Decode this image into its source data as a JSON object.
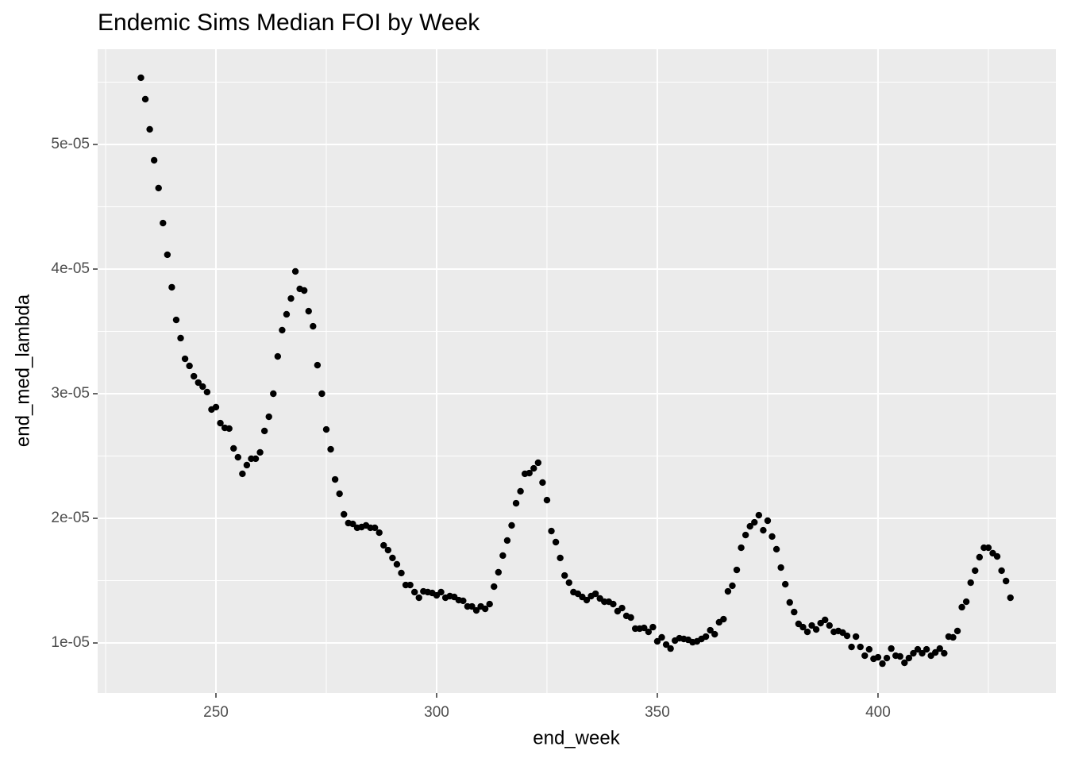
{
  "chart_data": {
    "type": "scatter",
    "title": "Endemic Sims Median FOI by Week",
    "x_label": "end_week",
    "y_label": "end_med_lambda",
    "color": "#000000",
    "grid": true,
    "xlim": [
      223.2,
      440.3
    ],
    "ylim": [
      5.99e-06,
      5.764e-05
    ],
    "xticks": [
      250,
      300,
      350,
      400
    ],
    "minor_xticks": [
      225,
      275,
      325,
      375,
      425
    ],
    "yticks": [
      {
        "value": 1e-05,
        "label": "1e-05"
      },
      {
        "value": 2e-05,
        "label": "2e-05"
      },
      {
        "value": 3e-05,
        "label": "3e-05"
      },
      {
        "value": 4e-05,
        "label": "4e-05"
      },
      {
        "value": 5e-05,
        "label": "5e-05"
      }
    ],
    "minor_yticks": [
      1.5e-05,
      2.5e-05,
      3.5e-05,
      4.5e-05,
      5.5e-05
    ],
    "x": [
      233,
      234,
      235,
      236,
      237,
      238,
      239,
      240,
      241,
      242,
      243,
      244,
      245,
      246,
      247,
      248,
      249,
      250,
      251,
      252,
      253,
      254,
      255,
      256,
      257,
      258,
      259,
      260,
      261,
      262,
      263,
      264,
      265,
      266,
      267,
      268,
      269,
      270,
      271,
      272,
      273,
      274,
      275,
      276,
      277,
      278,
      279,
      280,
      281,
      282,
      283,
      284,
      285,
      286,
      287,
      288,
      289,
      290,
      291,
      292,
      293,
      294,
      295,
      296,
      297,
      298,
      299,
      300,
      301,
      302,
      303,
      304,
      305,
      306,
      307,
      308,
      309,
      310,
      311,
      312,
      313,
      314,
      315,
      316,
      317,
      318,
      319,
      320,
      321,
      322,
      323,
      324,
      325,
      326,
      327,
      328,
      329,
      330,
      331,
      332,
      333,
      334,
      335,
      336,
      337,
      338,
      339,
      340,
      341,
      342,
      343,
      344,
      345,
      346,
      347,
      348,
      349,
      350,
      351,
      352,
      353,
      354,
      355,
      356,
      357,
      358,
      359,
      360,
      361,
      362,
      363,
      364,
      365,
      366,
      367,
      368,
      369,
      370,
      371,
      372,
      373,
      374,
      375,
      376,
      377,
      378,
      379,
      380,
      381,
      382,
      383,
      384,
      385,
      386,
      387,
      388,
      389,
      390,
      391,
      392,
      393,
      394,
      395,
      396,
      397,
      398,
      399,
      400,
      401,
      402,
      403,
      404,
      405,
      406,
      407,
      408,
      409,
      410,
      411,
      412,
      413,
      414,
      415,
      416,
      417,
      418,
      419,
      420,
      421,
      422,
      423,
      424,
      425,
      426,
      427,
      428,
      429,
      430
    ],
    "values": [
      5.535e-05,
      5.363e-05,
      5.121e-05,
      4.873e-05,
      4.65e-05,
      4.369e-05,
      4.115e-05,
      3.854e-05,
      3.592e-05,
      3.446e-05,
      3.28e-05,
      3.223e-05,
      3.14e-05,
      3.089e-05,
      3.057e-05,
      3.013e-05,
      2.873e-05,
      2.892e-05,
      2.764e-05,
      2.726e-05,
      2.72e-05,
      2.561e-05,
      2.49e-05,
      2.357e-05,
      2.427e-05,
      2.478e-05,
      2.478e-05,
      2.529e-05,
      2.701e-05,
      2.815e-05,
      3e-05,
      3.299e-05,
      3.51e-05,
      3.637e-05,
      3.764e-05,
      3.981e-05,
      3.841e-05,
      3.828e-05,
      3.662e-05,
      3.541e-05,
      3.229e-05,
      3e-05,
      2.713e-05,
      2.554e-05,
      2.312e-05,
      2.197e-05,
      2.032e-05,
      1.962e-05,
      1.955e-05,
      1.924e-05,
      1.93e-05,
      1.943e-05,
      1.924e-05,
      1.924e-05,
      1.885e-05,
      1.783e-05,
      1.745e-05,
      1.682e-05,
      1.631e-05,
      1.561e-05,
      1.465e-05,
      1.465e-05,
      1.408e-05,
      1.363e-05,
      1.414e-05,
      1.408e-05,
      1.401e-05,
      1.382e-05,
      1.408e-05,
      1.363e-05,
      1.376e-05,
      1.369e-05,
      1.344e-05,
      1.338e-05,
      1.293e-05,
      1.293e-05,
      1.261e-05,
      1.293e-05,
      1.274e-05,
      1.312e-05,
      1.452e-05,
      1.567e-05,
      1.701e-05,
      1.822e-05,
      1.943e-05,
      2.121e-05,
      2.217e-05,
      2.357e-05,
      2.363e-05,
      2.401e-05,
      2.446e-05,
      2.287e-05,
      2.146e-05,
      1.898e-05,
      1.809e-05,
      1.682e-05,
      1.541e-05,
      1.484e-05,
      1.408e-05,
      1.395e-05,
      1.369e-05,
      1.344e-05,
      1.376e-05,
      1.395e-05,
      1.357e-05,
      1.331e-05,
      1.331e-05,
      1.312e-05,
      1.255e-05,
      1.28e-05,
      1.217e-05,
      1.204e-05,
      1.115e-05,
      1.115e-05,
      1.121e-05,
      1.089e-05,
      1.127e-05,
      1.013e-05,
      1.045e-05,
      9.87e-06,
      9.55e-06,
      1.019e-05,
      1.038e-05,
      1.032e-05,
      1.025e-05,
      1.006e-05,
      1.013e-05,
      1.032e-05,
      1.051e-05,
      1.102e-05,
      1.07e-05,
      1.166e-05,
      1.191e-05,
      1.414e-05,
      1.459e-05,
      1.586e-05,
      1.764e-05,
      1.866e-05,
      1.936e-05,
      1.968e-05,
      2.025e-05,
      1.904e-05,
      1.981e-05,
      1.854e-05,
      1.752e-05,
      1.605e-05,
      1.471e-05,
      1.325e-05,
      1.248e-05,
      1.153e-05,
      1.127e-05,
      1.089e-05,
      1.14e-05,
      1.108e-05,
      1.159e-05,
      1.185e-05,
      1.14e-05,
      1.089e-05,
      1.096e-05,
      1.083e-05,
      1.057e-05,
      9.68e-06,
      1.051e-05,
      9.68e-06,
      8.98e-06,
      9.49e-06,
      8.73e-06,
      8.85e-06,
      8.34e-06,
      8.79e-06,
      9.55e-06,
      8.98e-06,
      8.92e-06,
      8.41e-06,
      8.79e-06,
      9.17e-06,
      9.49e-06,
      9.17e-06,
      9.49e-06,
      8.98e-06,
      9.24e-06,
      9.55e-06,
      9.17e-06,
      1.051e-05,
      1.045e-05,
      1.096e-05,
      1.287e-05,
      1.331e-05,
      1.484e-05,
      1.58e-05,
      1.688e-05,
      1.764e-05,
      1.764e-05,
      1.72e-05,
      1.694e-05,
      1.58e-05,
      1.497e-05,
      1.363e-05
    ]
  }
}
